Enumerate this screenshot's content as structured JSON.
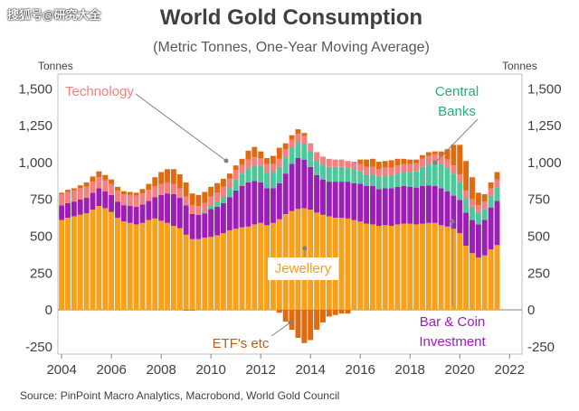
{
  "watermark": "搜狐号@研究大全",
  "chart_data": {
    "type": "stacked-bar",
    "title": "World Gold Consumption",
    "subtitle": "(Metric Tonnes, One-Year Moving Average)",
    "ylabel_left": "Tonnes",
    "ylabel_right": "Tonnes",
    "ylim": [
      -300,
      1600
    ],
    "yticks": [
      -250,
      0,
      250,
      500,
      750,
      1000,
      1250,
      1500
    ],
    "ytick_labels": [
      "-250",
      "0",
      "250",
      "500",
      "750",
      "1,000",
      "1,250",
      "1,500"
    ],
    "xlim": [
      2003.85,
      2022.5
    ],
    "xticks": [
      2004,
      2006,
      2008,
      2010,
      2012,
      2014,
      2016,
      2018,
      2020,
      2022
    ],
    "xtick_labels": [
      "2004",
      "2006",
      "2008",
      "2010",
      "2012",
      "2014",
      "2016",
      "2018",
      "2020",
      "2022"
    ],
    "source": "Source: PinPoint Macro Analytics, Macrobond, World Gold Council",
    "colors": {
      "Jewellery": "#f7a01c",
      "Bar & Coin Investment": "#9b1fb5",
      "Central Banks": "#4fc79c",
      "Technology": "#f58080",
      "ETF's etc": "#df6a10",
      "text": "#404040",
      "axis": "#595959"
    },
    "annotations": [
      {
        "label": "Technology",
        "color": "#f58080"
      },
      {
        "label": "Central",
        "color": "#2aa882"
      },
      {
        "label": "Banks",
        "color": "#2aa882"
      },
      {
        "label": "Jewellery",
        "color": "#f7a01c"
      },
      {
        "label": "ETF's etc",
        "color": "#c85a10"
      },
      {
        "label": "Bar & Coin",
        "color": "#9b1fb5"
      },
      {
        "label": "Investment",
        "color": "#9b1fb5"
      }
    ],
    "x": [
      2004.0,
      2004.25,
      2004.5,
      2004.75,
      2005.0,
      2005.25,
      2005.5,
      2005.75,
      2006.0,
      2006.25,
      2006.5,
      2006.75,
      2007.0,
      2007.25,
      2007.5,
      2007.75,
      2008.0,
      2008.25,
      2008.5,
      2008.75,
      2009.0,
      2009.25,
      2009.5,
      2009.75,
      2010.0,
      2010.25,
      2010.5,
      2010.75,
      2011.0,
      2011.25,
      2011.5,
      2011.75,
      2012.0,
      2012.25,
      2012.5,
      2012.75,
      2013.0,
      2013.25,
      2013.5,
      2013.75,
      2014.0,
      2014.25,
      2014.5,
      2014.75,
      2015.0,
      2015.25,
      2015.5,
      2015.75,
      2016.0,
      2016.25,
      2016.5,
      2016.75,
      2017.0,
      2017.25,
      2017.5,
      2017.75,
      2018.0,
      2018.25,
      2018.5,
      2018.75,
      2019.0,
      2019.25,
      2019.5,
      2019.75,
      2020.0,
      2020.25,
      2020.5,
      2020.75,
      2021.0,
      2021.25,
      2021.5
    ],
    "series": [
      {
        "name": "Jewellery",
        "values": [
          610,
          625,
          635,
          645,
          655,
          680,
          705,
          690,
          665,
          625,
          600,
          590,
          580,
          590,
          610,
          620,
          605,
          590,
          570,
          555,
          510,
          480,
          480,
          490,
          495,
          505,
          520,
          540,
          550,
          560,
          565,
          580,
          590,
          575,
          590,
          615,
          650,
          670,
          685,
          690,
          680,
          660,
          645,
          635,
          625,
          625,
          620,
          610,
          600,
          585,
          580,
          570,
          575,
          570,
          580,
          585,
          585,
          580,
          585,
          590,
          590,
          575,
          565,
          550,
          520,
          435,
          385,
          355,
          370,
          410,
          440
        ]
      },
      {
        "name": "Bar & Coin Investment",
        "values": [
          100,
          100,
          100,
          105,
          105,
          115,
          120,
          115,
          115,
          110,
          110,
          115,
          120,
          125,
          130,
          145,
          175,
          200,
          215,
          205,
          200,
          170,
          165,
          165,
          190,
          195,
          205,
          225,
          260,
          280,
          300,
          295,
          275,
          250,
          235,
          245,
          275,
          320,
          345,
          330,
          290,
          255,
          240,
          235,
          245,
          245,
          250,
          250,
          255,
          255,
          260,
          250,
          250,
          255,
          255,
          255,
          250,
          250,
          255,
          255,
          250,
          250,
          240,
          225,
          225,
          225,
          225,
          225,
          240,
          285,
          300
        ]
      },
      {
        "name": "Central Banks",
        "values": [
          0,
          0,
          0,
          0,
          0,
          0,
          0,
          0,
          0,
          0,
          0,
          0,
          0,
          0,
          0,
          0,
          0,
          0,
          0,
          0,
          0,
          0,
          0,
          10,
          20,
          30,
          45,
          60,
          75,
          85,
          95,
          100,
          110,
          110,
          110,
          110,
          110,
          110,
          110,
          105,
          105,
          100,
          100,
          100,
          100,
          100,
          90,
          90,
          85,
          80,
          80,
          85,
          85,
          85,
          90,
          95,
          100,
          110,
          130,
          145,
          160,
          165,
          160,
          150,
          120,
          100,
          90,
          80,
          75,
          80,
          90
        ]
      },
      {
        "name": "Technology",
        "values": [
          75,
          75,
          75,
          75,
          75,
          75,
          75,
          75,
          75,
          75,
          75,
          75,
          75,
          75,
          75,
          75,
          75,
          75,
          70,
          65,
          60,
          60,
          60,
          60,
          65,
          65,
          65,
          65,
          65,
          60,
          60,
          60,
          55,
          55,
          55,
          55,
          55,
          55,
          55,
          55,
          55,
          55,
          55,
          55,
          50,
          50,
          50,
          50,
          50,
          50,
          50,
          50,
          55,
          55,
          55,
          55,
          55,
          55,
          55,
          55,
          55,
          55,
          55,
          55,
          55,
          50,
          50,
          50,
          50,
          50,
          55
        ]
      },
      {
        "name": "ETF's etc",
        "values": [
          10,
          15,
          15,
          20,
          30,
          35,
          40,
          35,
          30,
          25,
          20,
          20,
          20,
          30,
          40,
          60,
          80,
          90,
          100,
          95,
          95,
          80,
          75,
          75,
          65,
          65,
          55,
          35,
          30,
          40,
          60,
          70,
          45,
          40,
          55,
          75,
          40,
          30,
          30,
          20,
          -5,
          0,
          -10,
          -5,
          -10,
          -5,
          -10,
          5,
          30,
          50,
          55,
          50,
          45,
          50,
          45,
          35,
          30,
          25,
          25,
          25,
          20,
          30,
          70,
          140,
          200,
          200,
          150,
          85,
          50,
          40,
          50
        ]
      }
    ],
    "etf_negative": [
      0,
      0,
      0,
      0,
      0,
      0,
      0,
      0,
      0,
      0,
      0,
      0,
      0,
      0,
      0,
      0,
      0,
      0,
      0,
      0,
      -5,
      -5,
      0,
      0,
      0,
      0,
      0,
      0,
      0,
      0,
      0,
      0,
      0,
      0,
      0,
      -20,
      -80,
      -135,
      -190,
      -225,
      -205,
      -135,
      -85,
      -45,
      -35,
      -25,
      -25,
      0,
      0,
      0,
      0,
      0,
      0,
      0,
      0,
      0,
      0,
      0,
      0,
      0,
      0,
      0,
      0,
      0,
      0,
      0,
      0,
      0,
      0,
      0,
      0
    ]
  }
}
